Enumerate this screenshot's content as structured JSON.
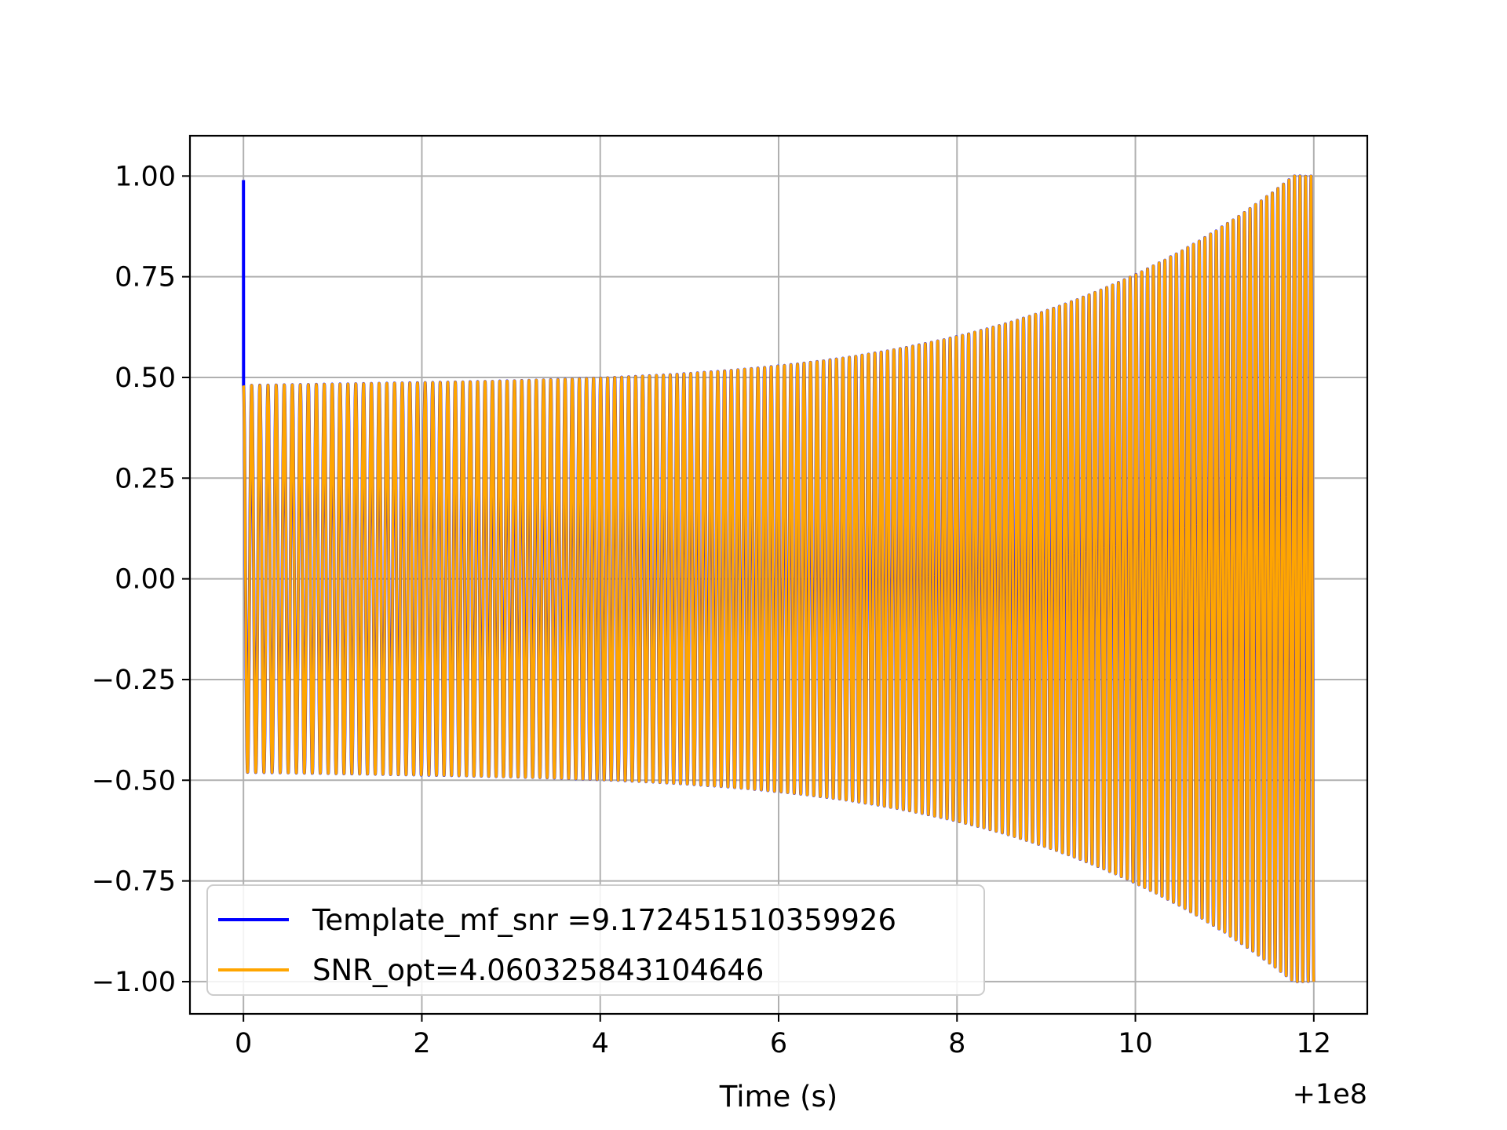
{
  "chart_data": {
    "type": "line",
    "title": "",
    "xlabel": "Time (s)",
    "ylabel": "",
    "x_offset_label": "+1e8",
    "xlim": [
      -0.6,
      12.6
    ],
    "ylim": [
      -1.08,
      1.1
    ],
    "x_ticks": [
      0,
      2,
      4,
      6,
      8,
      10,
      12
    ],
    "x_tick_labels": [
      "0",
      "2",
      "4",
      "6",
      "8",
      "10",
      "12"
    ],
    "y_ticks": [
      1.0,
      0.75,
      0.5,
      0.25,
      0.0,
      -0.25,
      -0.5,
      -0.75,
      -1.0
    ],
    "y_tick_labels": [
      "1.00",
      "0.75",
      "0.50",
      "0.25",
      "0.00",
      "−0.25",
      "−0.50",
      "−0.75",
      "−1.00"
    ],
    "grid": true,
    "legend_position": "lower-left",
    "series": [
      {
        "name": "Template_mf_snr =9.172451510359926",
        "color": "#0000ff",
        "x_range": [
          0,
          12
        ],
        "start_amplitude": 0.99,
        "end_amplitude": 1.0,
        "cycles": 130
      },
      {
        "name": "SNR_opt=4.060325843104646",
        "color": "#ffa500",
        "x_range": [
          0,
          12
        ],
        "start_amplitude": 0.48,
        "end_amplitude": 1.0,
        "cycles": 130
      }
    ]
  }
}
